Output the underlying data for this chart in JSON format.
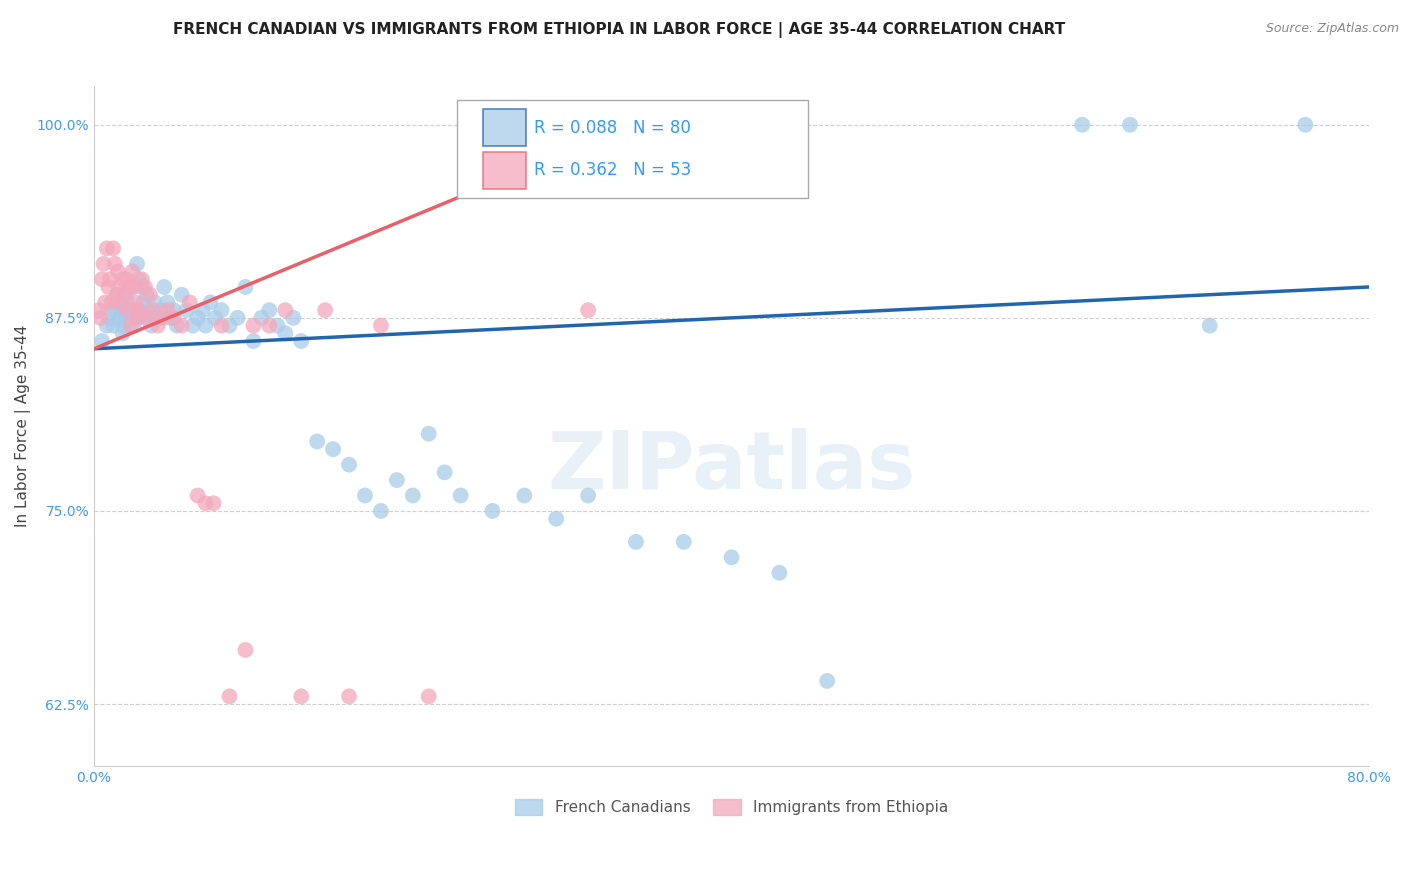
{
  "title": "FRENCH CANADIAN VS IMMIGRANTS FROM ETHIOPIA IN LABOR FORCE | AGE 35-44 CORRELATION CHART",
  "source": "Source: ZipAtlas.com",
  "ylabel": "In Labor Force | Age 35-44",
  "xlim": [
    0.0,
    0.8
  ],
  "ylim": [
    0.585,
    1.025
  ],
  "y_ticks": [
    0.625,
    0.75,
    0.875,
    1.0
  ],
  "y_tick_labels": [
    "62.5%",
    "75.0%",
    "87.5%",
    "100.0%"
  ],
  "blue_R": 0.088,
  "blue_N": 80,
  "pink_R": 0.362,
  "pink_N": 53,
  "blue_color": "#a8cce8",
  "pink_color": "#f4a8bc",
  "blue_line_color": "#2166ac",
  "pink_line_color": "#e8606a",
  "blue_scatter_x": [
    0.005,
    0.008,
    0.01,
    0.012,
    0.012,
    0.014,
    0.015,
    0.016,
    0.017,
    0.018,
    0.018,
    0.019,
    0.02,
    0.02,
    0.021,
    0.022,
    0.023,
    0.024,
    0.025,
    0.026,
    0.026,
    0.027,
    0.028,
    0.03,
    0.031,
    0.032,
    0.033,
    0.034,
    0.035,
    0.036,
    0.038,
    0.04,
    0.042,
    0.044,
    0.046,
    0.048,
    0.05,
    0.052,
    0.055,
    0.058,
    0.062,
    0.065,
    0.068,
    0.07,
    0.073,
    0.076,
    0.08,
    0.085,
    0.09,
    0.095,
    0.1,
    0.105,
    0.11,
    0.115,
    0.12,
    0.125,
    0.13,
    0.14,
    0.15,
    0.16,
    0.17,
    0.18,
    0.19,
    0.2,
    0.21,
    0.22,
    0.23,
    0.25,
    0.27,
    0.29,
    0.31,
    0.34,
    0.37,
    0.4,
    0.43,
    0.46,
    0.62,
    0.65,
    0.7,
    0.76
  ],
  "blue_scatter_y": [
    0.86,
    0.87,
    0.875,
    0.88,
    0.87,
    0.885,
    0.89,
    0.875,
    0.88,
    0.87,
    0.865,
    0.88,
    0.89,
    0.875,
    0.885,
    0.88,
    0.875,
    0.895,
    0.87,
    0.88,
    0.875,
    0.91,
    0.9,
    0.895,
    0.885,
    0.875,
    0.89,
    0.88,
    0.875,
    0.87,
    0.885,
    0.875,
    0.88,
    0.895,
    0.885,
    0.875,
    0.88,
    0.87,
    0.89,
    0.88,
    0.87,
    0.875,
    0.88,
    0.87,
    0.885,
    0.875,
    0.88,
    0.87,
    0.875,
    0.895,
    0.86,
    0.875,
    0.88,
    0.87,
    0.865,
    0.875,
    0.86,
    0.795,
    0.79,
    0.78,
    0.76,
    0.75,
    0.77,
    0.76,
    0.8,
    0.775,
    0.76,
    0.75,
    0.76,
    0.745,
    0.76,
    0.73,
    0.73,
    0.72,
    0.71,
    0.64,
    1.0,
    1.0,
    0.87,
    1.0
  ],
  "pink_scatter_x": [
    0.003,
    0.004,
    0.005,
    0.006,
    0.007,
    0.008,
    0.009,
    0.01,
    0.011,
    0.012,
    0.013,
    0.014,
    0.015,
    0.016,
    0.017,
    0.018,
    0.019,
    0.02,
    0.021,
    0.022,
    0.023,
    0.024,
    0.025,
    0.026,
    0.027,
    0.028,
    0.03,
    0.032,
    0.033,
    0.035,
    0.037,
    0.04,
    0.043,
    0.046,
    0.05,
    0.055,
    0.06,
    0.065,
    0.07,
    0.075,
    0.08,
    0.085,
    0.095,
    0.1,
    0.11,
    0.12,
    0.13,
    0.145,
    0.16,
    0.18,
    0.21,
    0.24,
    0.31
  ],
  "pink_scatter_y": [
    0.88,
    0.875,
    0.9,
    0.91,
    0.885,
    0.92,
    0.895,
    0.9,
    0.885,
    0.92,
    0.91,
    0.89,
    0.905,
    0.895,
    0.885,
    0.9,
    0.89,
    0.9,
    0.88,
    0.895,
    0.87,
    0.905,
    0.895,
    0.885,
    0.875,
    0.88,
    0.9,
    0.895,
    0.875,
    0.89,
    0.88,
    0.87,
    0.875,
    0.88,
    0.875,
    0.87,
    0.885,
    0.76,
    0.755,
    0.755,
    0.87,
    0.63,
    0.66,
    0.87,
    0.87,
    0.88,
    0.63,
    0.88,
    0.63,
    0.87,
    0.63,
    1.0,
    0.88
  ],
  "watermark": "ZIPatlas",
  "background_color": "#ffffff",
  "grid_color": "#d0d0d0",
  "title_fontsize": 11,
  "axis_label_fontsize": 11,
  "tick_fontsize": 10,
  "legend_fontsize": 11,
  "source_fontsize": 9
}
